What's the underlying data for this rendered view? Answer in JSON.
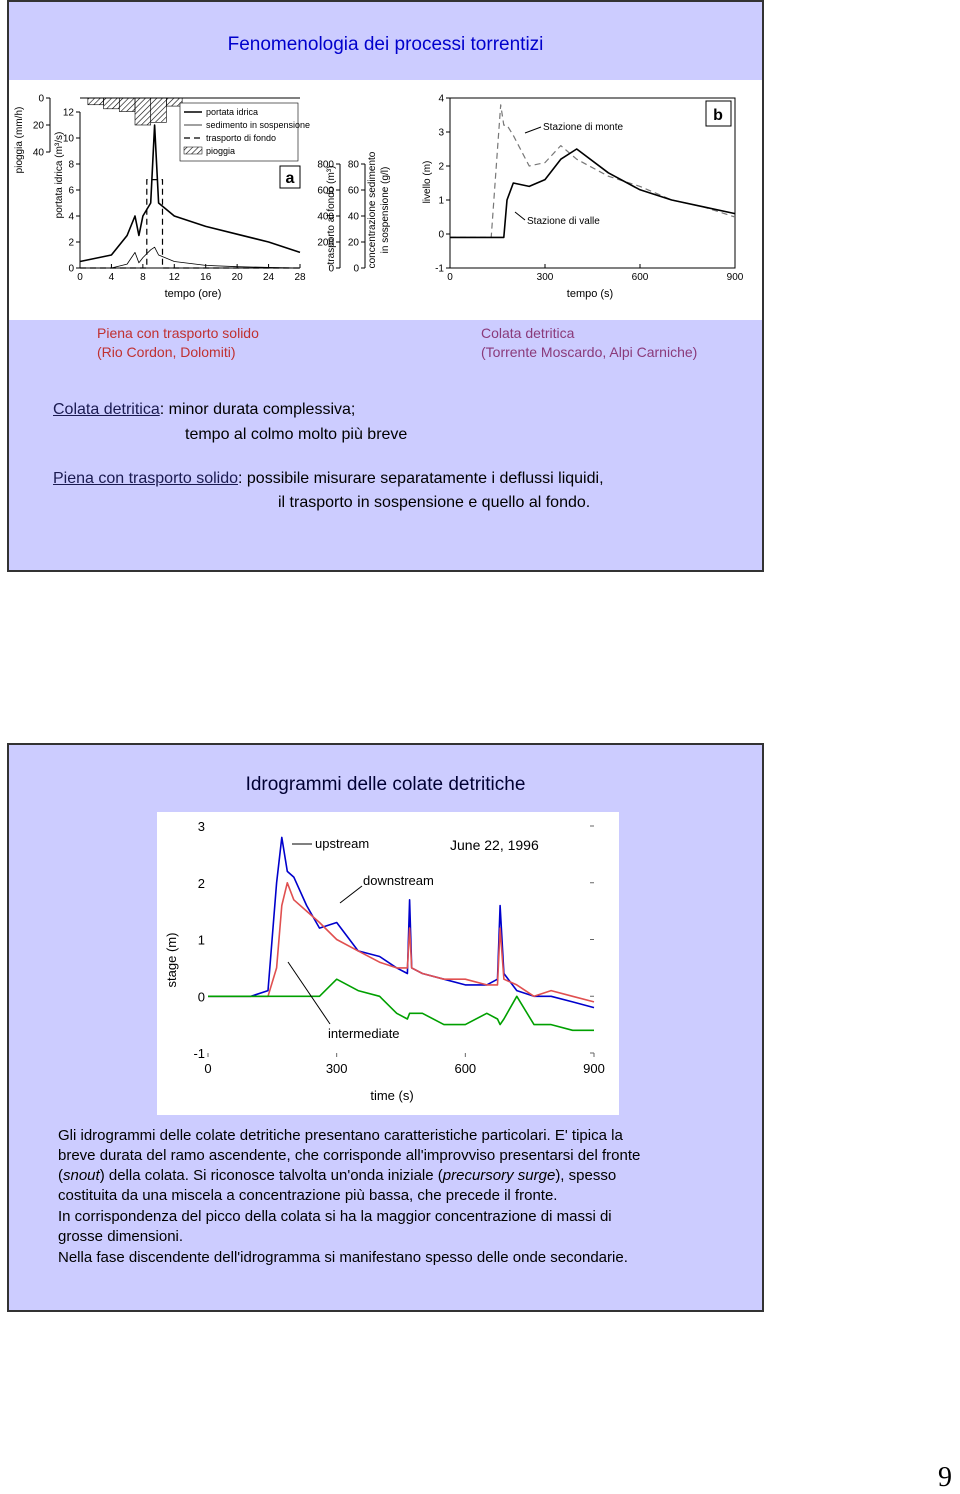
{
  "slide1": {
    "title": "Fenomenologia dei processi torrentizi",
    "figure_a": {
      "type": "line",
      "label": "a",
      "xlabel": "tempo (ore)",
      "xlim": [
        0,
        28
      ],
      "xticks": [
        0,
        4,
        8,
        12,
        16,
        20,
        24,
        28
      ],
      "axes": [
        {
          "label": "pioggia (mm/h)",
          "ylim": [
            0,
            40
          ],
          "yticks": [
            0,
            20,
            40
          ],
          "inverted": true
        },
        {
          "label": "portata idrica (m³/s)",
          "ylim": [
            0,
            12
          ],
          "yticks": [
            0,
            2,
            4,
            6,
            8,
            10,
            12
          ]
        },
        {
          "label": "trasporto al fondo (m³)",
          "ylim": [
            0,
            800
          ],
          "yticks": [
            0,
            200,
            400,
            600,
            800
          ]
        },
        {
          "label": [
            "concentrazione sedimento",
            "in sospensione (g/l)"
          ],
          "ylim": [
            0,
            80
          ],
          "yticks": [
            0,
            20,
            40,
            60,
            80
          ]
        }
      ],
      "series": [
        {
          "name": "portata idrica",
          "axis": 1,
          "color": "#000000",
          "style": "solid",
          "x": [
            0,
            4,
            6,
            7,
            7.5,
            8,
            9,
            9.5,
            10,
            12,
            16,
            20,
            24,
            28
          ],
          "values": [
            0.5,
            1,
            2.5,
            4,
            2.5,
            4,
            5,
            11,
            5,
            4,
            3.2,
            2.6,
            2,
            1.2
          ]
        },
        {
          "name": "sedimento in sospensione",
          "axis": 3,
          "color": "#000000",
          "style": "thin",
          "x": [
            0,
            4,
            6,
            7,
            7.5,
            8,
            9,
            9.5,
            10,
            12,
            16,
            20,
            24,
            28
          ],
          "values": [
            0,
            0,
            3,
            12,
            4,
            8,
            14,
            16,
            10,
            5,
            2,
            1,
            0.5,
            0
          ]
        },
        {
          "name": "trasporto di fondo",
          "axis": 2,
          "color": "#000000",
          "style": "dashed",
          "x": [
            0,
            8.5,
            8.5,
            10.5,
            10.5,
            28
          ],
          "values": [
            0,
            0,
            680,
            680,
            0,
            0
          ]
        },
        {
          "name": "pioggia",
          "axis": 0,
          "color": "#000000",
          "style": "hatched",
          "type": "bar",
          "x": [
            1,
            3,
            5,
            7,
            9,
            11
          ],
          "values": [
            5,
            8,
            10,
            20,
            18,
            6
          ]
        }
      ]
    },
    "figure_b": {
      "type": "line",
      "label": "b",
      "xlabel": "tempo (s)",
      "ylabel": "livello (m)",
      "xlim": [
        0,
        900
      ],
      "xticks": [
        0,
        300,
        600,
        900
      ],
      "ylim": [
        -1,
        4
      ],
      "yticks": [
        -1,
        0,
        1,
        2,
        3,
        4
      ],
      "annotations": [
        "Stazione di monte",
        "Stazione di valle"
      ],
      "x": [
        0,
        100,
        130,
        150,
        160,
        170,
        180,
        200,
        250,
        300,
        350,
        400,
        500,
        600,
        700,
        800,
        900
      ],
      "series": [
        {
          "color": "#777777",
          "style": "dashed",
          "values": [
            -0.1,
            -0.1,
            -0.1,
            2.5,
            3.8,
            3.2,
            3.2,
            2.9,
            2.0,
            2.1,
            2.6,
            2.2,
            1.7,
            1.4,
            1.0,
            0.8,
            0.5
          ]
        },
        {
          "color": "#000000",
          "style": "solid",
          "values": [
            -0.1,
            -0.1,
            -0.1,
            -0.1,
            -0.1,
            -0.1,
            1.0,
            1.5,
            1.4,
            1.6,
            2.2,
            2.5,
            1.8,
            1.3,
            1.0,
            0.8,
            0.6
          ]
        }
      ]
    },
    "caption_left": [
      "Piena con trasporto solido",
      "(Rio Cordon, Dolomiti)"
    ],
    "caption_right": [
      "Colata detritica",
      "(Torrente Moscardo, Alpi Carniche)"
    ],
    "notes": [
      {
        "term": "Colata detritica",
        "text": [
          ": minor durata complessiva;",
          "tempo al colmo molto più breve"
        ]
      },
      {
        "term": "Piena con trasporto solido",
        "text": [
          ": possibile misurare separatamente i deflussi liquidi,",
          "il trasporto in sospensione e quello al fondo."
        ]
      }
    ]
  },
  "slide2": {
    "title": "Idrogrammi delle colate detritiche",
    "chart": {
      "type": "line",
      "xlabel": "time (s)",
      "ylabel": "stage (m)",
      "xlim": [
        0,
        900
      ],
      "xticks": [
        0,
        300,
        600,
        900
      ],
      "ylim": [
        -1,
        3
      ],
      "yticks": [
        -1,
        0,
        1,
        2,
        3
      ],
      "annotations": [
        "upstream",
        "downstream",
        "intermediate",
        "June 22, 1996"
      ],
      "x": [
        0,
        50,
        100,
        140,
        160,
        172,
        185,
        200,
        230,
        260,
        300,
        350,
        400,
        440,
        465,
        470,
        475,
        500,
        550,
        600,
        650,
        675,
        681,
        690,
        720,
        760,
        800,
        850,
        900
      ],
      "series": [
        {
          "color": "#0000cc",
          "values": [
            0,
            0,
            0,
            0.1,
            2.0,
            2.8,
            2.2,
            2.1,
            1.6,
            1.2,
            1.3,
            0.8,
            0.7,
            0.5,
            0.4,
            1.7,
            0.5,
            0.4,
            0.3,
            0.2,
            0.2,
            0.3,
            1.6,
            0.4,
            0.1,
            0.0,
            0.0,
            -0.1,
            -0.2
          ]
        },
        {
          "color": "#e05050",
          "values": [
            0,
            0,
            0,
            0,
            0.5,
            1.6,
            2.0,
            1.7,
            1.5,
            1.3,
            1.0,
            0.8,
            0.6,
            0.5,
            0.5,
            1.2,
            0.5,
            0.4,
            0.3,
            0.3,
            0.2,
            0.2,
            1.2,
            0.3,
            0.2,
            0.0,
            0.1,
            0.0,
            -0.1
          ]
        },
        {
          "color": "#00a000",
          "values": [
            0,
            0,
            0,
            0,
            0,
            0,
            0,
            0,
            0,
            0,
            0.3,
            0.1,
            0,
            -0.3,
            -0.4,
            -0.3,
            -0.3,
            -0.3,
            -0.5,
            -0.5,
            -0.3,
            -0.4,
            -0.5,
            -0.4,
            0,
            -0.5,
            -0.5,
            -0.6,
            -0.6
          ]
        }
      ]
    },
    "paragraph": [
      [
        "Gli idrogrammi delle colate detritiche presentano caratteristiche particolari. E' tipica la"
      ],
      [
        "breve durata del ramo ascendente, che corrisponde all'improvviso presentarsi del fronte"
      ],
      [
        "(",
        "snout",
        ") della colata. Si riconosce talvolta un'onda iniziale (",
        "precursory surge",
        "), spesso"
      ],
      [
        "costituita da una miscela a concentrazione più bassa, che precede il fronte."
      ],
      [
        "In corrispondenza del picco della colata si ha la maggior concentrazione di massi di"
      ],
      [
        "grosse dimensioni."
      ],
      [
        "Nella fase discendente dell'idrogramma si manifestano spesso delle onde secondarie."
      ]
    ]
  },
  "page_number": "9"
}
